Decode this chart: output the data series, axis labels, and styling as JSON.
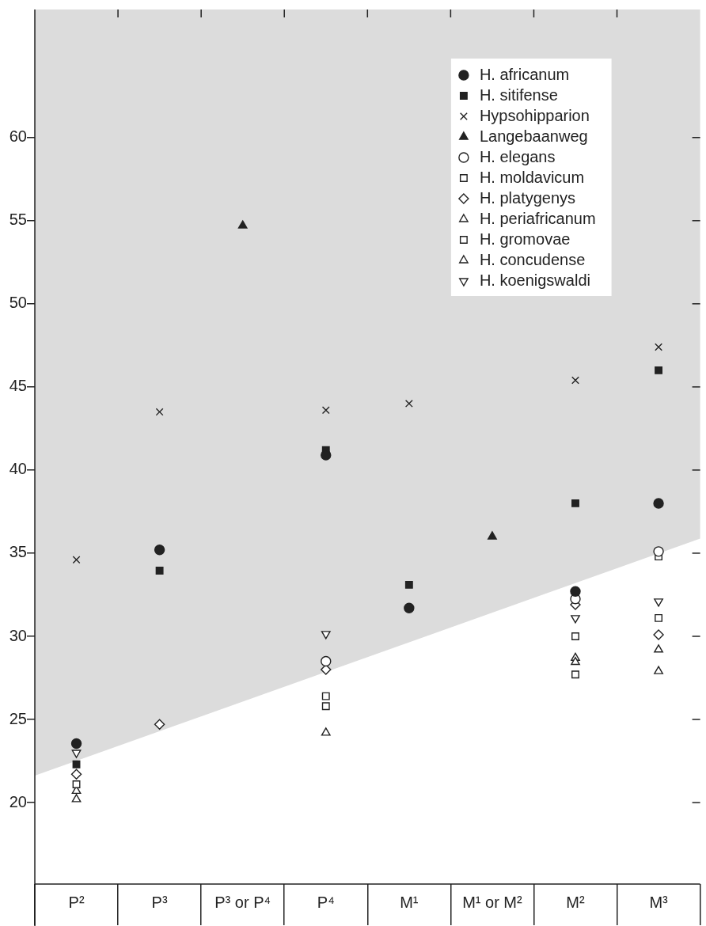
{
  "chart_data": {
    "type": "scatter",
    "categories": [
      "P²",
      "P³",
      "P³ or P⁴",
      "P⁴",
      "M¹",
      "M¹ or M²",
      "M²",
      "M³"
    ],
    "ylim": [
      15.1,
      67.7
    ],
    "yticks": [
      20,
      25,
      30,
      35,
      40,
      45,
      50,
      55,
      60
    ],
    "grid": false,
    "legend": "top right",
    "series": [
      {
        "name": "H. africanum",
        "color": "#222222",
        "marker": "circle",
        "values": [
          23.55,
          35.2,
          null,
          40.9,
          31.7,
          null,
          32.7,
          38.0
        ]
      },
      {
        "name": "H. sitifense",
        "color": "#222222",
        "marker": "square",
        "values": [
          22.3,
          33.95,
          null,
          41.2,
          33.1,
          null,
          38.0,
          46.0
        ]
      },
      {
        "name": "Hypsohipparion",
        "color": "#222222",
        "marker": "cross",
        "values": [
          34.6,
          43.5,
          null,
          43.6,
          44.0,
          null,
          45.4,
          47.4
        ]
      },
      {
        "name": "Langebaanweg",
        "color": "#222222",
        "marker": "triangle",
        "values": [
          null,
          null,
          54.7,
          null,
          null,
          36.0,
          null,
          null
        ]
      },
      {
        "name": "H. elegans",
        "color": "#ffffff",
        "marker": "circle",
        "values": [
          null,
          null,
          null,
          28.5,
          null,
          null,
          32.25,
          35.1
        ]
      },
      {
        "name": "H. moldavicum",
        "color": "#ffffff",
        "marker": "square",
        "values": [
          21.1,
          null,
          null,
          25.8,
          null,
          null,
          30.0,
          34.8
        ]
      },
      {
        "name": "H. platygenys",
        "color": "#ffffff",
        "marker": "diamond",
        "values": [
          21.7,
          24.7,
          null,
          28.0,
          null,
          null,
          31.9,
          30.1
        ]
      },
      {
        "name": "H. periafricanum",
        "color": "#ffffff",
        "marker": "triangle",
        "values": [
          20.2,
          null,
          null,
          24.2,
          null,
          null,
          28.45,
          27.9
        ]
      },
      {
        "name": "H. gromovae",
        "color": "#ffffff",
        "marker": "square",
        "values": [
          null,
          null,
          null,
          26.4,
          null,
          null,
          27.7,
          31.1
        ]
      },
      {
        "name": "H. concudense",
        "color": "#ffffff",
        "marker": "triangle",
        "values": [
          20.7,
          null,
          null,
          null,
          null,
          null,
          28.7,
          29.2
        ]
      },
      {
        "name": "H. koenigswaldi",
        "color": "#ffffff",
        "marker": "triangle-down",
        "values": [
          23.0,
          null,
          null,
          30.15,
          null,
          null,
          31.1,
          32.1
        ]
      }
    ]
  }
}
